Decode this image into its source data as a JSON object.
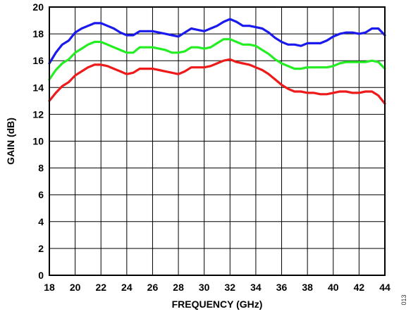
{
  "figure_id": "013",
  "chart_data": {
    "type": "line",
    "title": "",
    "xlabel": "FREQUENCY (GHz)",
    "ylabel": "GAIN (dB)",
    "xlim": [
      18,
      44
    ],
    "ylim": [
      0,
      20
    ],
    "x_ticks": [
      18,
      20,
      22,
      24,
      26,
      28,
      30,
      32,
      34,
      36,
      38,
      40,
      42,
      44
    ],
    "y_ticks": [
      0,
      2,
      4,
      6,
      8,
      10,
      12,
      14,
      16,
      18,
      20
    ],
    "grid": true,
    "legend": "none",
    "series": [
      {
        "color": "#1a1aee",
        "x": [
          18,
          18.5,
          19,
          19.5,
          20,
          20.5,
          21,
          21.5,
          22,
          22.5,
          23,
          23.5,
          24,
          24.5,
          25,
          25.5,
          26,
          26.5,
          27,
          27.5,
          28,
          28.5,
          29,
          29.5,
          30,
          30.5,
          31,
          31.5,
          32,
          32.5,
          33,
          33.5,
          34,
          34.5,
          35,
          35.5,
          36,
          36.5,
          37,
          37.5,
          38,
          38.5,
          39,
          39.5,
          40,
          40.5,
          41,
          41.5,
          42,
          42.5,
          43,
          43.5,
          44
        ],
        "y": [
          15.8,
          16.6,
          17.2,
          17.5,
          18.1,
          18.4,
          18.6,
          18.8,
          18.8,
          18.6,
          18.4,
          18.1,
          17.9,
          17.9,
          18.2,
          18.2,
          18.2,
          18.1,
          18.0,
          17.9,
          17.8,
          18.1,
          18.4,
          18.3,
          18.2,
          18.4,
          18.6,
          18.9,
          19.1,
          18.9,
          18.6,
          18.6,
          18.5,
          18.4,
          18.1,
          17.7,
          17.4,
          17.2,
          17.2,
          17.1,
          17.3,
          17.3,
          17.3,
          17.5,
          17.8,
          18.0,
          18.1,
          18.1,
          18.0,
          18.1,
          18.4,
          18.4,
          17.9
        ]
      },
      {
        "color": "#22ee22",
        "x": [
          18,
          18.5,
          19,
          19.5,
          20,
          20.5,
          21,
          21.5,
          22,
          22.5,
          23,
          23.5,
          24,
          24.5,
          25,
          25.5,
          26,
          26.5,
          27,
          27.5,
          28,
          28.5,
          29,
          29.5,
          30,
          30.5,
          31,
          31.5,
          32,
          32.5,
          33,
          33.5,
          34,
          34.5,
          35,
          35.5,
          36,
          36.5,
          37,
          37.5,
          38,
          38.5,
          39,
          39.5,
          40,
          40.5,
          41,
          41.5,
          42,
          42.5,
          43,
          43.5,
          44
        ],
        "y": [
          14.6,
          15.3,
          15.8,
          16.1,
          16.6,
          16.9,
          17.2,
          17.4,
          17.4,
          17.2,
          17.0,
          16.8,
          16.6,
          16.6,
          17.0,
          17.0,
          17.0,
          16.9,
          16.8,
          16.6,
          16.6,
          16.7,
          17.0,
          17.0,
          16.9,
          17.0,
          17.3,
          17.6,
          17.6,
          17.4,
          17.2,
          17.2,
          17.1,
          16.8,
          16.5,
          16.1,
          15.8,
          15.6,
          15.4,
          15.4,
          15.5,
          15.5,
          15.5,
          15.5,
          15.6,
          15.8,
          15.9,
          15.9,
          15.9,
          15.9,
          16.0,
          15.9,
          15.4
        ]
      },
      {
        "color": "#ee1a1a",
        "x": [
          18,
          18.5,
          19,
          19.5,
          20,
          20.5,
          21,
          21.5,
          22,
          22.5,
          23,
          23.5,
          24,
          24.5,
          25,
          25.5,
          26,
          26.5,
          27,
          27.5,
          28,
          28.5,
          29,
          29.5,
          30,
          30.5,
          31,
          31.5,
          32,
          32.5,
          33,
          33.5,
          34,
          34.5,
          35,
          35.5,
          36,
          36.5,
          37,
          37.5,
          38,
          38.5,
          39,
          39.5,
          40,
          40.5,
          41,
          41.5,
          42,
          42.5,
          43,
          43.5,
          44
        ],
        "y": [
          13.0,
          13.6,
          14.1,
          14.4,
          14.9,
          15.2,
          15.5,
          15.7,
          15.7,
          15.6,
          15.4,
          15.2,
          15.0,
          15.1,
          15.4,
          15.4,
          15.4,
          15.3,
          15.2,
          15.1,
          15.0,
          15.2,
          15.5,
          15.5,
          15.5,
          15.6,
          15.8,
          16.0,
          16.1,
          15.9,
          15.8,
          15.7,
          15.5,
          15.3,
          15.0,
          14.6,
          14.2,
          13.9,
          13.7,
          13.7,
          13.6,
          13.6,
          13.5,
          13.5,
          13.6,
          13.7,
          13.7,
          13.6,
          13.6,
          13.7,
          13.7,
          13.4,
          12.8
        ]
      }
    ]
  }
}
